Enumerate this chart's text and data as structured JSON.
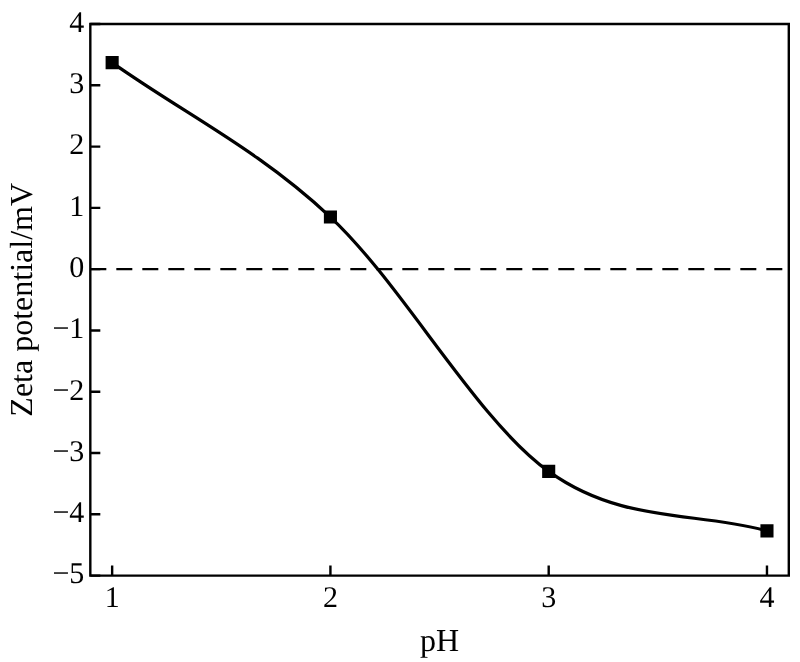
{
  "chart_data": {
    "type": "line",
    "xlabel": "pH",
    "ylabel": "Zeta potential/mV",
    "x": [
      1,
      2,
      3,
      4
    ],
    "series": [
      {
        "color": "#000000",
        "values": [
          3.37,
          0.85,
          -3.3,
          -4.27
        ]
      }
    ],
    "xlim": [
      0.9,
      4.1
    ],
    "xticks": [
      1,
      2,
      3,
      4
    ],
    "ylim": [
      -5,
      4
    ],
    "yticks": [
      {
        "value": -5,
        "label": "−5"
      },
      {
        "value": -4,
        "label": "−4"
      },
      {
        "value": -3,
        "label": "−3"
      },
      {
        "value": -2,
        "label": "−2"
      },
      {
        "value": -1,
        "label": "−1"
      },
      0,
      1,
      2,
      3,
      4
    ],
    "ref_lines": [
      {
        "axis": "y",
        "value": 0,
        "color": "#000000",
        "line_style": "dashed"
      }
    ],
    "marker": "square",
    "line_style": "solid",
    "grid": false,
    "legend": false
  }
}
